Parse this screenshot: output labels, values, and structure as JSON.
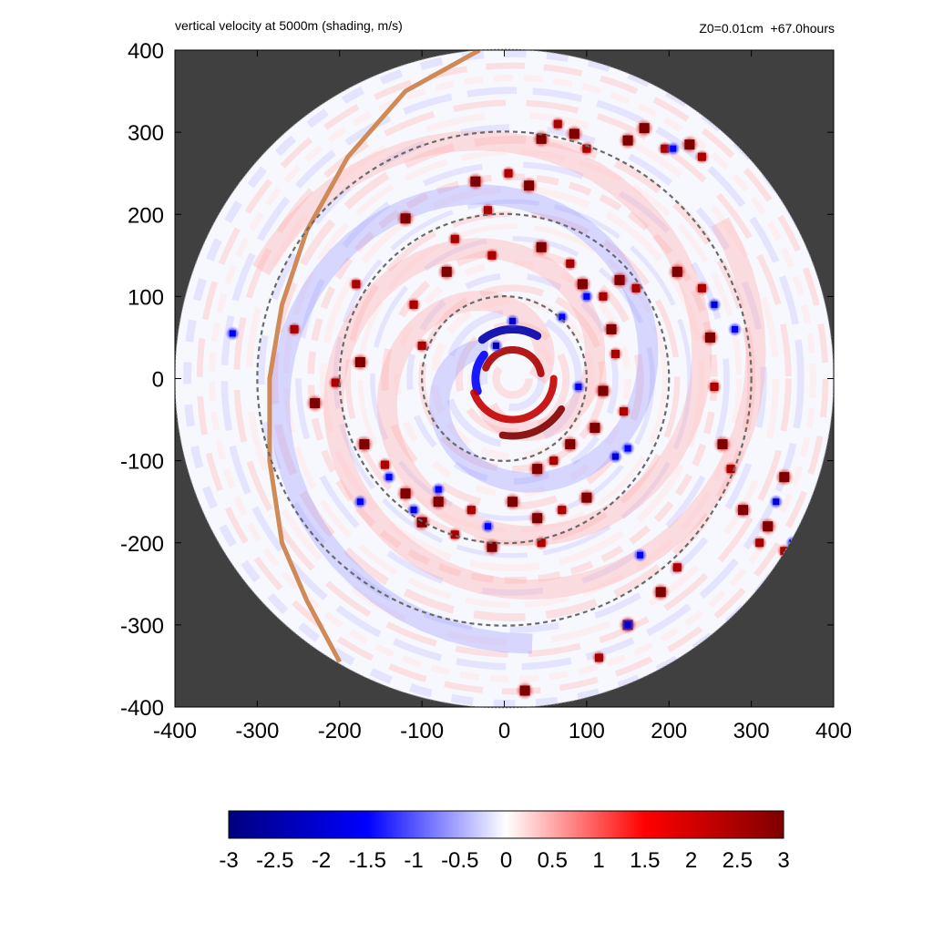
{
  "chart_data": {
    "type": "heatmap",
    "title": "vertical velocity at 5000m (shading, m/s)",
    "run_info": "Z0=0.01cm  +67.0hours",
    "xlim": [
      -400,
      400
    ],
    "ylim": [
      -400,
      400
    ],
    "x_ticks": [
      -400,
      -300,
      -200,
      -100,
      0,
      100,
      200,
      300,
      400
    ],
    "y_ticks": [
      -400,
      -300,
      -200,
      -100,
      0,
      100,
      200,
      300,
      400
    ],
    "domain_radius": 400,
    "range_rings": [
      100,
      200,
      300
    ],
    "colorbar": {
      "min": -3,
      "max": 3,
      "ticks": [
        "-3",
        "-2.5",
        "-2",
        "-1.5",
        "-1",
        "-0.5",
        "0",
        "0.5",
        "1",
        "1.5",
        "2",
        "2.5",
        "3"
      ],
      "colors": [
        "#00007f",
        "#0000ff",
        "#ffffff",
        "#ff0000",
        "#7f0000"
      ]
    },
    "outside_domain_color": "#404040",
    "coastline_color": "#d08a58",
    "coastline": [
      [
        -30,
        400
      ],
      [
        -120,
        350
      ],
      [
        -190,
        270
      ],
      [
        -240,
        180
      ],
      [
        -270,
        90
      ],
      [
        -285,
        0
      ],
      [
        -285,
        -100
      ],
      [
        -270,
        -200
      ],
      [
        -240,
        -270
      ],
      [
        -200,
        -345
      ]
    ],
    "eye_center": [
      10,
      0
    ],
    "eyewall_updrafts": [
      {
        "arc_deg": [
          200,
          360
        ],
        "radius": 50,
        "value": 2.2
      },
      {
        "arc_deg": [
          10,
          160
        ],
        "radius": 35,
        "value": 2.5
      },
      {
        "arc_deg": [
          260,
          330
        ],
        "radius": 70,
        "value": 3
      }
    ],
    "eyewall_downdrafts": [
      {
        "arc_deg": [
          60,
          130
        ],
        "radius": 60,
        "value": -2.5
      },
      {
        "arc_deg": [
          140,
          200
        ],
        "radius": 45,
        "value": -1.5
      }
    ],
    "convective_cells": [
      [
        45,
        292,
        3
      ],
      [
        65,
        310,
        2.5
      ],
      [
        85,
        298,
        3
      ],
      [
        100,
        280,
        2.5
      ],
      [
        150,
        290,
        3
      ],
      [
        170,
        305,
        3
      ],
      [
        195,
        280,
        2.5
      ],
      [
        225,
        285,
        3
      ],
      [
        240,
        270,
        2.5
      ],
      [
        -35,
        240,
        3
      ],
      [
        -20,
        205,
        2.5
      ],
      [
        5,
        250,
        2.5
      ],
      [
        30,
        235,
        3
      ],
      [
        -120,
        195,
        3
      ],
      [
        -60,
        170,
        2.5
      ],
      [
        -15,
        150,
        2.5
      ],
      [
        45,
        160,
        3
      ],
      [
        80,
        140,
        2.5
      ],
      [
        95,
        115,
        3
      ],
      [
        120,
        100,
        2.5
      ],
      [
        140,
        120,
        3
      ],
      [
        160,
        110,
        2.5
      ],
      [
        130,
        60,
        3
      ],
      [
        135,
        30,
        2.5
      ],
      [
        120,
        -15,
        3
      ],
      [
        145,
        -40,
        2.5
      ],
      [
        110,
        -60,
        3
      ],
      [
        80,
        -80,
        3
      ],
      [
        60,
        -100,
        2.5
      ],
      [
        40,
        -110,
        3
      ],
      [
        210,
        130,
        3
      ],
      [
        240,
        110,
        2.5
      ],
      [
        250,
        50,
        3
      ],
      [
        255,
        -10,
        2.5
      ],
      [
        265,
        -80,
        3
      ],
      [
        275,
        -110,
        2.5
      ],
      [
        290,
        -160,
        3
      ],
      [
        320,
        -180,
        3
      ],
      [
        340,
        -210,
        2.5
      ],
      [
        -170,
        -80,
        3
      ],
      [
        -145,
        -105,
        2.5
      ],
      [
        -120,
        -140,
        3
      ],
      [
        -80,
        -150,
        3
      ],
      [
        -40,
        -160,
        2.5
      ],
      [
        10,
        -150,
        3
      ],
      [
        40,
        -170,
        3
      ],
      [
        70,
        -160,
        2.5
      ],
      [
        -100,
        -175,
        3
      ],
      [
        -60,
        -190,
        2.5
      ],
      [
        -15,
        -205,
        3
      ],
      [
        45,
        -200,
        2.5
      ],
      [
        100,
        -145,
        3
      ],
      [
        150,
        -300,
        3
      ],
      [
        115,
        -340,
        2.5
      ],
      [
        25,
        -380,
        3
      ],
      [
        -230,
        -30,
        3
      ],
      [
        -205,
        -5,
        2.5
      ],
      [
        -255,
        60,
        2.5
      ],
      [
        -175,
        20,
        3
      ],
      [
        -100,
        40,
        2.5
      ],
      [
        -110,
        90,
        2.5
      ],
      [
        -70,
        130,
        3
      ],
      [
        190,
        -260,
        3
      ],
      [
        210,
        -230,
        2.5
      ],
      [
        310,
        -200,
        2.5
      ],
      [
        340,
        -120,
        3
      ],
      [
        -180,
        115,
        2.5
      ]
    ],
    "downdraft_cells": [
      [
        10,
        70,
        -2
      ],
      [
        -10,
        40,
        -2.5
      ],
      [
        100,
        100,
        -1.5
      ],
      [
        70,
        75,
        -1.5
      ],
      [
        -80,
        -135,
        -1.5
      ],
      [
        135,
        -95,
        -2
      ],
      [
        150,
        -85,
        -1.5
      ],
      [
        150,
        -300,
        -2
      ],
      [
        165,
        -215,
        -1.5
      ],
      [
        -20,
        -180,
        -1.5
      ],
      [
        -140,
        -120,
        -1.5
      ],
      [
        255,
        90,
        -2
      ],
      [
        280,
        60,
        -1.5
      ],
      [
        -175,
        -150,
        -1.5
      ],
      [
        330,
        -150,
        -2
      ],
      [
        350,
        -200,
        -1.5
      ],
      [
        205,
        280,
        -1.5
      ],
      [
        -330,
        55,
        -1.5
      ],
      [
        90,
        -10,
        -1.5
      ],
      [
        -110,
        -160,
        -2
      ]
    ]
  }
}
